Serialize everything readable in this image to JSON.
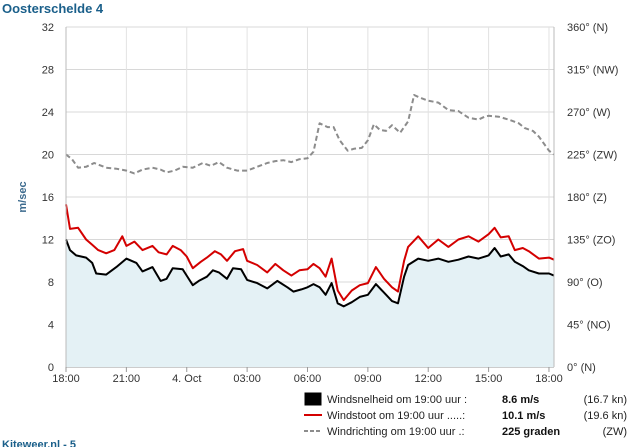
{
  "title": "Oosterschelde 4",
  "footer_text": "Kiteweer.nl - 5",
  "chart_data": {
    "type": "line",
    "title": "Oosterschelde 4",
    "ylabel": "m/sec",
    "ylim": [
      0,
      32
    ],
    "y2lim": [
      0,
      360
    ],
    "xlim": [
      18,
      42.25
    ],
    "x_unit": "hours since 3 Oct 18:00 (display as clock time)",
    "grid": true,
    "y_ticks": [
      "0",
      "4",
      "8",
      "12",
      "16",
      "20",
      "24",
      "28",
      "32"
    ],
    "y2_ticks": [
      "0° (N)",
      "45° (NO)",
      "90° (O)",
      "135° (ZO)",
      "180° (Z)",
      "225° (ZW)",
      "270° (W)",
      "315° (NW)",
      "360° (N)"
    ],
    "x_ticks": [
      {
        "value": 18,
        "label": "18:00"
      },
      {
        "value": 21,
        "label": "21:00"
      },
      {
        "value": 24,
        "label": "4. Oct"
      },
      {
        "value": 27,
        "label": "03:00"
      },
      {
        "value": 30,
        "label": "06:00"
      },
      {
        "value": 33,
        "label": "09:00"
      },
      {
        "value": 36,
        "label": "12:00"
      },
      {
        "value": 39,
        "label": "15:00"
      },
      {
        "value": 42,
        "label": "18:00"
      }
    ],
    "series": [
      {
        "name": "Windsnelheid",
        "axis": "left",
        "color": "#000000",
        "style": "solid-area",
        "legend_text": "Windsnelheid om 19:00 uur :",
        "legend_value": "8.6 m/s",
        "legend_extra": "(16.7 kn)",
        "points": [
          [
            18.0,
            12.0
          ],
          [
            18.2,
            11.0
          ],
          [
            18.5,
            10.5
          ],
          [
            19.0,
            10.3
          ],
          [
            19.3,
            9.8
          ],
          [
            19.5,
            8.8
          ],
          [
            20.0,
            8.7
          ],
          [
            20.5,
            9.4
          ],
          [
            21.0,
            10.2
          ],
          [
            21.5,
            9.8
          ],
          [
            21.8,
            9.0
          ],
          [
            22.3,
            9.4
          ],
          [
            22.7,
            8.1
          ],
          [
            23.0,
            8.3
          ],
          [
            23.3,
            9.3
          ],
          [
            23.8,
            9.2
          ],
          [
            24.0,
            8.6
          ],
          [
            24.3,
            7.7
          ],
          [
            24.6,
            8.1
          ],
          [
            25.0,
            8.5
          ],
          [
            25.3,
            9.1
          ],
          [
            25.6,
            8.9
          ],
          [
            26.0,
            8.3
          ],
          [
            26.3,
            9.3
          ],
          [
            26.7,
            9.2
          ],
          [
            27.0,
            8.2
          ],
          [
            27.5,
            7.9
          ],
          [
            28.0,
            7.4
          ],
          [
            28.5,
            8.1
          ],
          [
            29.0,
            7.5
          ],
          [
            29.3,
            7.1
          ],
          [
            29.7,
            7.3
          ],
          [
            30.0,
            7.5
          ],
          [
            30.3,
            7.8
          ],
          [
            30.6,
            7.5
          ],
          [
            30.9,
            6.8
          ],
          [
            31.2,
            7.9
          ],
          [
            31.5,
            6.0
          ],
          [
            31.8,
            5.7
          ],
          [
            32.2,
            6.1
          ],
          [
            32.6,
            6.6
          ],
          [
            33.0,
            6.8
          ],
          [
            33.4,
            7.8
          ],
          [
            33.8,
            7.0
          ],
          [
            34.2,
            6.2
          ],
          [
            34.5,
            6.0
          ],
          [
            34.8,
            8.5
          ],
          [
            35.0,
            9.6
          ],
          [
            35.5,
            10.2
          ],
          [
            36.0,
            10.0
          ],
          [
            36.5,
            10.2
          ],
          [
            37.0,
            9.9
          ],
          [
            37.5,
            10.1
          ],
          [
            38.0,
            10.4
          ],
          [
            38.5,
            10.2
          ],
          [
            39.0,
            10.5
          ],
          [
            39.3,
            11.2
          ],
          [
            39.6,
            10.4
          ],
          [
            40.0,
            10.6
          ],
          [
            40.3,
            9.9
          ],
          [
            40.7,
            9.5
          ],
          [
            41.0,
            9.1
          ],
          [
            41.5,
            8.8
          ],
          [
            42.0,
            8.8
          ],
          [
            42.25,
            8.6
          ]
        ]
      },
      {
        "name": "Windstoot",
        "axis": "left",
        "color": "#d40000",
        "style": "solid",
        "legend_text": "Windstoot om 19:00 uur .....:",
        "legend_value": "10.1 m/s",
        "legend_extra": "(19.6 kn)",
        "points": [
          [
            18.0,
            15.3
          ],
          [
            18.2,
            13.0
          ],
          [
            18.6,
            13.1
          ],
          [
            19.0,
            12.0
          ],
          [
            19.3,
            11.5
          ],
          [
            19.6,
            11.0
          ],
          [
            20.0,
            10.7
          ],
          [
            20.4,
            11.0
          ],
          [
            20.8,
            12.3
          ],
          [
            21.0,
            11.4
          ],
          [
            21.4,
            11.8
          ],
          [
            21.8,
            11.0
          ],
          [
            22.3,
            11.4
          ],
          [
            22.6,
            10.8
          ],
          [
            23.0,
            10.6
          ],
          [
            23.3,
            11.4
          ],
          [
            23.7,
            11.0
          ],
          [
            24.0,
            10.4
          ],
          [
            24.3,
            9.3
          ],
          [
            24.7,
            9.9
          ],
          [
            25.0,
            10.3
          ],
          [
            25.4,
            10.9
          ],
          [
            25.7,
            10.6
          ],
          [
            26.0,
            10.0
          ],
          [
            26.4,
            10.9
          ],
          [
            26.8,
            11.1
          ],
          [
            27.0,
            10.0
          ],
          [
            27.5,
            9.6
          ],
          [
            28.0,
            8.9
          ],
          [
            28.4,
            9.7
          ],
          [
            28.8,
            9.1
          ],
          [
            29.2,
            8.6
          ],
          [
            29.6,
            9.1
          ],
          [
            30.0,
            9.2
          ],
          [
            30.3,
            9.7
          ],
          [
            30.6,
            9.3
          ],
          [
            30.9,
            8.5
          ],
          [
            31.2,
            10.2
          ],
          [
            31.5,
            7.2
          ],
          [
            31.8,
            6.3
          ],
          [
            32.2,
            7.2
          ],
          [
            32.6,
            7.7
          ],
          [
            33.0,
            7.9
          ],
          [
            33.4,
            9.4
          ],
          [
            33.8,
            8.3
          ],
          [
            34.2,
            7.5
          ],
          [
            34.5,
            7.1
          ],
          [
            34.8,
            10.0
          ],
          [
            35.0,
            11.3
          ],
          [
            35.5,
            12.3
          ],
          [
            36.0,
            11.2
          ],
          [
            36.5,
            12.0
          ],
          [
            37.0,
            11.3
          ],
          [
            37.5,
            12.0
          ],
          [
            38.0,
            12.3
          ],
          [
            38.5,
            11.8
          ],
          [
            39.0,
            12.5
          ],
          [
            39.3,
            13.1
          ],
          [
            39.6,
            12.2
          ],
          [
            40.0,
            12.3
          ],
          [
            40.3,
            11.0
          ],
          [
            40.7,
            11.2
          ],
          [
            41.0,
            10.9
          ],
          [
            41.5,
            10.2
          ],
          [
            42.0,
            10.3
          ],
          [
            42.25,
            10.1
          ]
        ]
      },
      {
        "name": "Windrichting",
        "axis": "right",
        "color": "#8c8c8c",
        "style": "dashed",
        "legend_text": "Windrichting om 19:00 uur .:",
        "legend_value": "225 graden",
        "legend_extra": "(ZW)",
        "points": [
          [
            18.0,
            225
          ],
          [
            18.3,
            220
          ],
          [
            18.6,
            211
          ],
          [
            19.0,
            212
          ],
          [
            19.4,
            216
          ],
          [
            20.0,
            211
          ],
          [
            20.5,
            210
          ],
          [
            21.0,
            208
          ],
          [
            21.4,
            205
          ],
          [
            21.8,
            209
          ],
          [
            22.3,
            211
          ],
          [
            22.7,
            209
          ],
          [
            23.0,
            206
          ],
          [
            23.4,
            208
          ],
          [
            23.8,
            212
          ],
          [
            24.3,
            211
          ],
          [
            24.8,
            216
          ],
          [
            25.2,
            213
          ],
          [
            25.6,
            217
          ],
          [
            26.0,
            211
          ],
          [
            26.5,
            208
          ],
          [
            27.0,
            208
          ],
          [
            27.5,
            212
          ],
          [
            28.0,
            216
          ],
          [
            28.4,
            218
          ],
          [
            28.8,
            219
          ],
          [
            29.2,
            217
          ],
          [
            29.6,
            220
          ],
          [
            30.0,
            221
          ],
          [
            30.3,
            228
          ],
          [
            30.6,
            258
          ],
          [
            31.0,
            254
          ],
          [
            31.3,
            254
          ],
          [
            31.6,
            240
          ],
          [
            32.0,
            229
          ],
          [
            32.3,
            231
          ],
          [
            32.7,
            232
          ],
          [
            33.0,
            240
          ],
          [
            33.3,
            257
          ],
          [
            33.6,
            251
          ],
          [
            33.9,
            250
          ],
          [
            34.2,
            256
          ],
          [
            34.6,
            248
          ],
          [
            35.0,
            260
          ],
          [
            35.3,
            288
          ],
          [
            35.6,
            285
          ],
          [
            36.0,
            282
          ],
          [
            36.5,
            280
          ],
          [
            37.0,
            272
          ],
          [
            37.5,
            271
          ],
          [
            38.0,
            264
          ],
          [
            38.5,
            262
          ],
          [
            38.8,
            265
          ],
          [
            39.0,
            266
          ],
          [
            39.5,
            265
          ],
          [
            40.0,
            262
          ],
          [
            40.5,
            258
          ],
          [
            40.8,
            253
          ],
          [
            41.2,
            250
          ],
          [
            41.5,
            244
          ],
          [
            42.0,
            229
          ],
          [
            42.25,
            225
          ]
        ]
      }
    ]
  }
}
